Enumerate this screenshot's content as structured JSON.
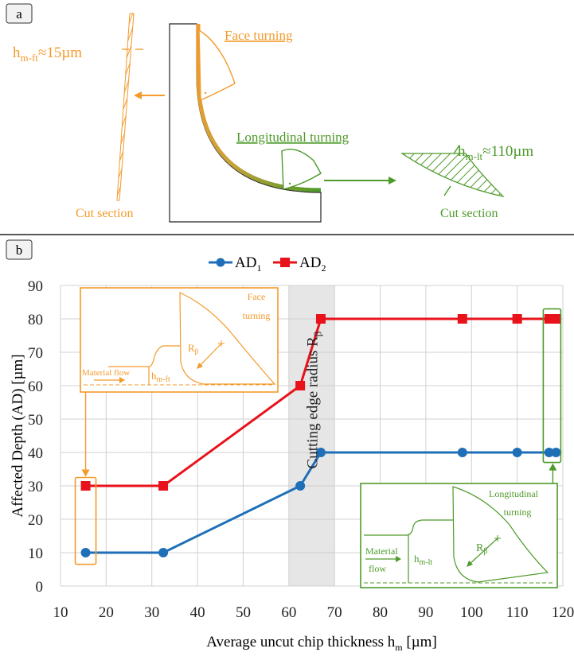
{
  "colors": {
    "orange": "#f39a2b",
    "green": "#4e9a2a",
    "ad1": "#1f6fb8",
    "ad2": "#e8121b",
    "grid": "#d0d0d0",
    "shade": "#e6e6e6"
  },
  "panel_a": {
    "label": "a",
    "face_turning": "Face turning",
    "longitudinal_turning": "Longitudinal turning",
    "hm_ft_main": "h",
    "hm_ft_sub": "m-ft",
    "hm_ft_value": "≈15µm",
    "hm_lt_main": "h",
    "hm_lt_sub": "m-lt",
    "hm_lt_value": "≈110µm",
    "cut_section_left": "Cut section",
    "cut_section_right": "Cut section"
  },
  "panel_b": {
    "label": "b",
    "shaded_label": "Cutting edge radius R",
    "shaded_label_sub": "β",
    "inset_ft": {
      "title_line1": "Face",
      "title_line2": "turning",
      "radius_main": "R",
      "radius_sub": "β",
      "flow": "Material flow",
      "depth_main": "h",
      "depth_sub": "m-ft"
    },
    "inset_lt": {
      "title_line1": "Longitudinal",
      "title_line2": "turning",
      "radius_main": "R",
      "radius_sub": "β",
      "flow_line1": "Material",
      "flow_line2": "flow",
      "depth_main": "h",
      "depth_sub": "m-lt"
    }
  },
  "chart_data": {
    "type": "line",
    "xlabel": "Average uncut chip thickness h",
    "xlabel_sub": "m",
    "xlabel_unit": " [µm]",
    "ylabel": "Affected Depth (AD) [µm]",
    "xlim": [
      10,
      120
    ],
    "ylim": [
      0,
      90
    ],
    "xticks": [
      10,
      20,
      30,
      40,
      50,
      60,
      70,
      80,
      90,
      100,
      110,
      120
    ],
    "yticks": [
      0,
      10,
      20,
      30,
      40,
      50,
      60,
      70,
      80,
      90
    ],
    "grid": true,
    "legend_position": "top-center",
    "shaded_region": [
      60,
      70
    ],
    "series": [
      {
        "name": "AD",
        "name_sub": "1",
        "color": "#1f6fb8",
        "marker": "circle",
        "x": [
          15.5,
          32.5,
          62.5,
          67,
          98,
          110,
          117,
          118.5
        ],
        "y": [
          10,
          10,
          30,
          40,
          40,
          40,
          40,
          40
        ]
      },
      {
        "name": "AD",
        "name_sub": "2",
        "color": "#e8121b",
        "marker": "square",
        "x": [
          15.5,
          32.5,
          62.5,
          67,
          98,
          110,
          117,
          118.5
        ],
        "y": [
          30,
          30,
          60,
          80,
          80,
          80,
          80,
          80
        ]
      }
    ]
  }
}
